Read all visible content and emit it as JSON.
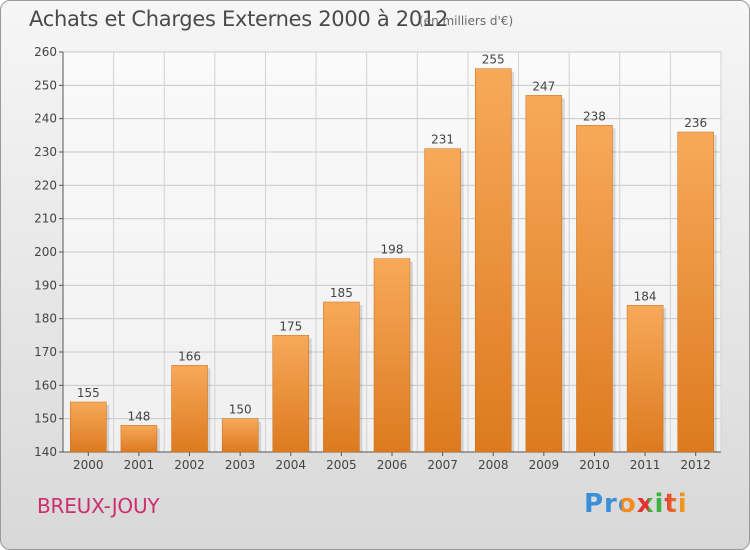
{
  "header": {
    "title": "Achats et Charges Externes 2000 à 2012",
    "unit": "(en milliers d'€)"
  },
  "footer": {
    "commune": "BREUX-JOUY",
    "logo": "Proxiti"
  },
  "colors": {
    "bar_top": "#f7a95a",
    "bar_bottom": "#dd7a1f",
    "commune": "#cc2f6b"
  },
  "chart_data": {
    "type": "bar",
    "title": "Achats et Charges Externes 2000 à 2012",
    "subtitle": "(en milliers d'€)",
    "categories": [
      "2000",
      "2001",
      "2002",
      "2003",
      "2004",
      "2005",
      "2006",
      "2007",
      "2008",
      "2009",
      "2010",
      "2011",
      "2012"
    ],
    "values": [
      155,
      148,
      166,
      150,
      175,
      185,
      198,
      231,
      255,
      247,
      238,
      184,
      236
    ],
    "ylim": [
      140,
      260
    ],
    "yticks": [
      140,
      150,
      160,
      170,
      180,
      190,
      200,
      210,
      220,
      230,
      240,
      250,
      260
    ],
    "grid": true,
    "data_labels": true
  }
}
